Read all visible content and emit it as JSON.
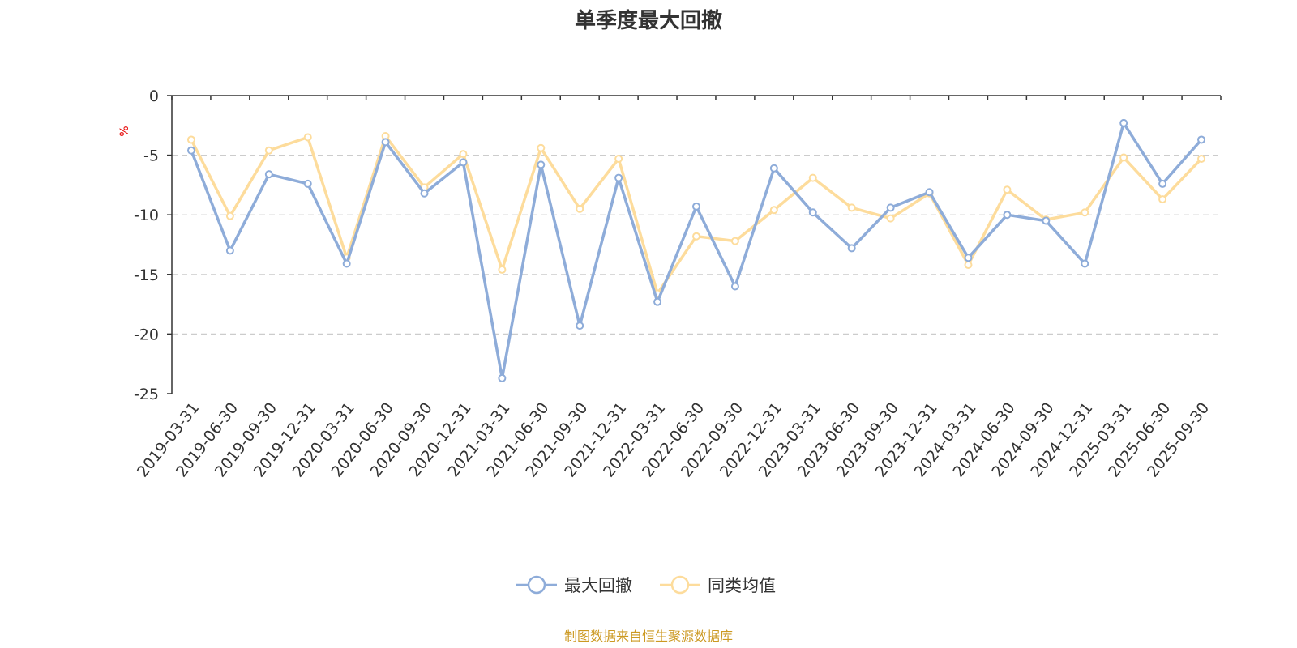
{
  "chart_data": {
    "type": "line",
    "title": "单季度最大回撤",
    "ylabel": "%",
    "ylim": [
      -25,
      0
    ],
    "yticks": [
      0,
      -5,
      -10,
      -15,
      -20,
      -25
    ],
    "categories": [
      "2019-03-31",
      "2019-06-30",
      "2019-09-30",
      "2019-12-31",
      "2020-03-31",
      "2020-06-30",
      "2020-09-30",
      "2020-12-31",
      "2021-03-31",
      "2021-06-30",
      "2021-09-30",
      "2021-12-31",
      "2022-03-31",
      "2022-06-30",
      "2022-09-30",
      "2022-12-31",
      "2023-03-31",
      "2023-06-30",
      "2023-09-30",
      "2023-12-31",
      "2024-03-31",
      "2024-06-30",
      "2024-09-30",
      "2024-12-31",
      "2025-03-31",
      "2025-06-30",
      "2025-09-30"
    ],
    "series": [
      {
        "name": "最大回撤",
        "color": "#8eacd9",
        "values": [
          -4.6,
          -13.0,
          -6.6,
          -7.4,
          -14.1,
          -3.9,
          -8.2,
          -5.6,
          -23.7,
          -5.8,
          -19.3,
          -6.9,
          -17.3,
          -9.3,
          -16.0,
          -6.1,
          -9.8,
          -12.8,
          -9.4,
          -8.1,
          -13.6,
          -10.0,
          -10.5,
          -14.1,
          -2.3,
          -7.4,
          -3.7
        ]
      },
      {
        "name": "同类均值",
        "color": "#fddc9c",
        "values": [
          -3.7,
          -10.1,
          -4.6,
          -3.5,
          -13.6,
          -3.4,
          -7.7,
          -4.9,
          -14.6,
          -4.4,
          -9.5,
          -5.3,
          -16.6,
          -11.8,
          -12.2,
          -9.6,
          -6.9,
          -9.4,
          -10.3,
          -8.2,
          -14.2,
          -7.9,
          -10.4,
          -9.8,
          -5.2,
          -8.7,
          -5.3
        ]
      }
    ],
    "legend_position": "bottom-center",
    "gridlines": true
  },
  "source": "制图数据来自恒生聚源数据库",
  "colors": {
    "axis": "#333333",
    "grid": "#cccccc",
    "unit": "#e60000",
    "source": "#cc9922"
  }
}
